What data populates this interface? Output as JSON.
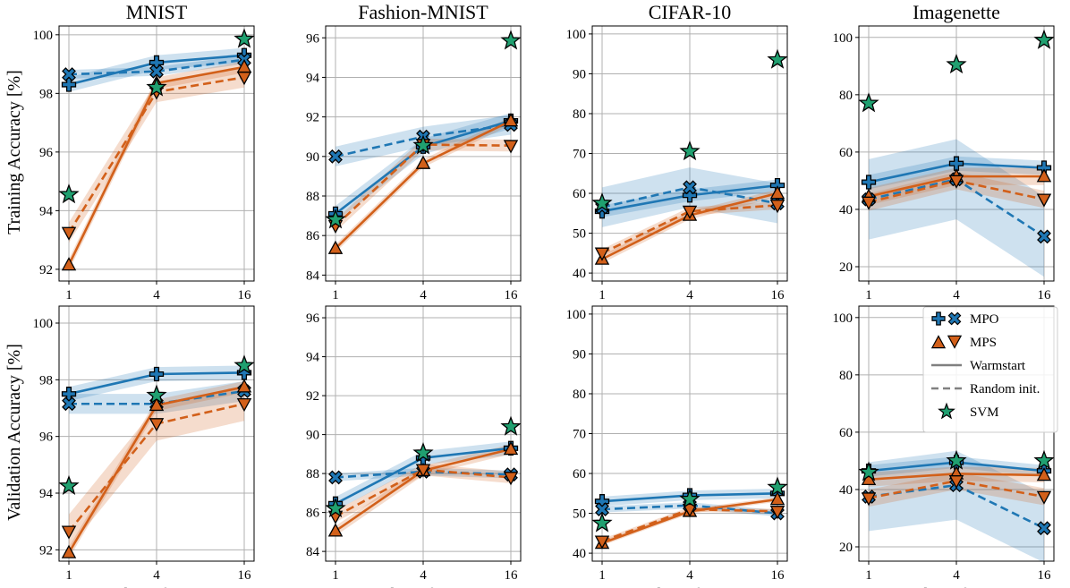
{
  "figure": {
    "xlabel": "Number of patches",
    "row_ylabels": [
      "Training Accuracy [%]",
      "Validation Accuracy [%]"
    ]
  },
  "colors": {
    "mpo": "#1f77b4",
    "mps": "#d2601a",
    "svm": "#20a070",
    "legend_line": "#808080"
  },
  "legend": {
    "entries": [
      {
        "key": "mpo",
        "label": "MPO"
      },
      {
        "key": "mps",
        "label": "MPS"
      },
      {
        "key": "warm",
        "label": "Warmstart"
      },
      {
        "key": "random",
        "label": "Random init."
      },
      {
        "key": "svm",
        "label": "SVM"
      }
    ]
  },
  "chart_data": [
    {
      "type": "line",
      "title": "MNIST",
      "row": "Training",
      "x": [
        1,
        4,
        16
      ],
      "xticks": [
        "1",
        "4",
        "16"
      ],
      "ylim": [
        91.6,
        100.3
      ],
      "yticks": [
        92,
        94,
        96,
        98,
        100
      ],
      "series": [
        {
          "name": "MPO Warmstart",
          "values": [
            98.3,
            99.05,
            99.3
          ],
          "band": 0.25
        },
        {
          "name": "MPO Random init.",
          "values": [
            98.65,
            98.75,
            99.15
          ],
          "band": 0.15
        },
        {
          "name": "MPS Warmstart",
          "values": [
            92.15,
            98.35,
            98.9
          ],
          "band": 0.2
        },
        {
          "name": "MPS Random init.",
          "values": [
            93.25,
            98.05,
            98.55
          ],
          "band": 0.35
        },
        {
          "name": "SVM",
          "values": [
            94.55,
            98.2,
            99.85
          ]
        }
      ]
    },
    {
      "type": "line",
      "title": "Fashion-MNIST",
      "row": "Training",
      "x": [
        1,
        4,
        16
      ],
      "xticks": [
        "1",
        "4",
        "16"
      ],
      "ylim": [
        83.7,
        96.6
      ],
      "yticks": [
        84,
        86,
        88,
        90,
        92,
        94,
        96
      ],
      "series": [
        {
          "name": "MPO Warmstart",
          "values": [
            87.1,
            90.5,
            91.8
          ],
          "band": 0.4
        },
        {
          "name": "MPO Random init.",
          "values": [
            90.0,
            91.0,
            91.6
          ],
          "band": 0.5
        },
        {
          "name": "MPS Warmstart",
          "values": [
            85.35,
            89.65,
            91.8
          ],
          "band": 0.2
        },
        {
          "name": "MPS Random init.",
          "values": [
            86.5,
            90.6,
            90.55
          ],
          "band": 0.3
        },
        {
          "name": "SVM",
          "values": [
            86.8,
            90.55,
            95.85
          ]
        }
      ]
    },
    {
      "type": "line",
      "title": "CIFAR-10",
      "row": "Training",
      "x": [
        1,
        4,
        16
      ],
      "xticks": [
        "1",
        "4",
        "16"
      ],
      "ylim": [
        38,
        102
      ],
      "yticks": [
        40,
        50,
        60,
        70,
        80,
        90,
        100
      ],
      "series": [
        {
          "name": "MPO Warmstart",
          "values": [
            55.5,
            59.5,
            62
          ],
          "band": 1.5
        },
        {
          "name": "MPO Random init.",
          "values": [
            56.5,
            61.5,
            57.5
          ],
          "band": 5
        },
        {
          "name": "MPS Warmstart",
          "values": [
            43.5,
            54.5,
            60
          ],
          "band": 1
        },
        {
          "name": "MPS Random init.",
          "values": [
            45,
            55.5,
            57
          ],
          "band": 1
        },
        {
          "name": "SVM",
          "values": [
            57.5,
            70.5,
            93.5
          ]
        }
      ]
    },
    {
      "type": "line",
      "title": "Imagenette",
      "row": "Training",
      "x": [
        1,
        4,
        16
      ],
      "xticks": [
        "1",
        "4",
        "16"
      ],
      "ylim": [
        15,
        104
      ],
      "yticks": [
        20,
        40,
        60,
        80,
        100
      ],
      "series": [
        {
          "name": "MPO Warmstart",
          "values": [
            49.5,
            56,
            54.5
          ],
          "band": 2.5
        },
        {
          "name": "MPO Random init.",
          "values": [
            43.5,
            50.5,
            30.5
          ],
          "band": 14
        },
        {
          "name": "MPS Warmstart",
          "values": [
            44.5,
            51.5,
            51.5
          ],
          "band": 3
        },
        {
          "name": "MPS Random init.",
          "values": [
            42.5,
            50,
            43.5
          ],
          "band": 3
        },
        {
          "name": "SVM",
          "values": [
            77,
            90.5,
            99
          ]
        }
      ]
    },
    {
      "type": "line",
      "title": "",
      "row": "Validation",
      "x": [
        1,
        4,
        16
      ],
      "xticks": [
        "1",
        "4",
        "16"
      ],
      "ylim": [
        91.6,
        100.6
      ],
      "yticks": [
        92,
        94,
        96,
        98,
        100
      ],
      "series": [
        {
          "name": "MPO Warmstart",
          "values": [
            97.5,
            98.2,
            98.25
          ],
          "band": 0.25
        },
        {
          "name": "MPO Random init.",
          "values": [
            97.15,
            97.15,
            97.6
          ],
          "band": 0.35
        },
        {
          "name": "MPS Warmstart",
          "values": [
            91.9,
            97.1,
            97.75
          ],
          "band": 0.2
        },
        {
          "name": "MPS Random init.",
          "values": [
            92.65,
            96.45,
            97.15
          ],
          "band": 0.6
        },
        {
          "name": "SVM",
          "values": [
            94.25,
            97.45,
            98.5
          ]
        }
      ]
    },
    {
      "type": "line",
      "title": "",
      "row": "Validation",
      "x": [
        1,
        4,
        16
      ],
      "xticks": [
        "1",
        "4",
        "16"
      ],
      "ylim": [
        83.5,
        96.6
      ],
      "yticks": [
        84,
        86,
        88,
        90,
        92,
        94,
        96
      ],
      "series": [
        {
          "name": "MPO Warmstart",
          "values": [
            86.45,
            88.8,
            89.3
          ],
          "band": 0.35
        },
        {
          "name": "MPO Random init.",
          "values": [
            87.8,
            88.1,
            87.95
          ],
          "band": 0.2
        },
        {
          "name": "MPS Warmstart",
          "values": [
            85.05,
            88.15,
            89.25
          ],
          "band": 0.25
        },
        {
          "name": "MPS Random init.",
          "values": [
            85.8,
            88.2,
            87.8
          ],
          "band": 0.3
        },
        {
          "name": "SVM",
          "values": [
            86.2,
            89.05,
            90.4
          ]
        }
      ]
    },
    {
      "type": "line",
      "title": "",
      "row": "Validation",
      "x": [
        1,
        4,
        16
      ],
      "xticks": [
        "1",
        "4",
        "16"
      ],
      "ylim": [
        38,
        102
      ],
      "yticks": [
        40,
        50,
        60,
        70,
        80,
        90,
        100
      ],
      "series": [
        {
          "name": "MPO Warmstart",
          "values": [
            53,
            54.5,
            55
          ],
          "band": 1.2
        },
        {
          "name": "MPO Random init.",
          "values": [
            51,
            52,
            50
          ],
          "band": 0.8
        },
        {
          "name": "MPS Warmstart",
          "values": [
            42.5,
            50.5,
            53.5
          ],
          "band": 0.6
        },
        {
          "name": "MPS Random init.",
          "values": [
            43,
            51,
            50.5
          ],
          "band": 0.6
        },
        {
          "name": "SVM",
          "values": [
            47.5,
            53.5,
            56.5
          ]
        }
      ]
    },
    {
      "type": "line",
      "title": "",
      "row": "Validation",
      "x": [
        1,
        4,
        16
      ],
      "xticks": [
        "1",
        "4",
        "16"
      ],
      "ylim": [
        15,
        104
      ],
      "yticks": [
        20,
        40,
        60,
        80,
        100
      ],
      "series": [
        {
          "name": "MPO Warmstart",
          "values": [
            46.5,
            49.5,
            46.5
          ],
          "band": 2
        },
        {
          "name": "MPO Random init.",
          "values": [
            37.5,
            41.5,
            26.5
          ],
          "band": 12
        },
        {
          "name": "MPS Warmstart",
          "values": [
            43.5,
            45.5,
            45
          ],
          "band": 2.5
        },
        {
          "name": "MPS Random init.",
          "values": [
            37,
            43,
            37.5
          ],
          "band": 3
        },
        {
          "name": "SVM",
          "values": [
            46,
            50,
            50
          ]
        }
      ]
    }
  ]
}
